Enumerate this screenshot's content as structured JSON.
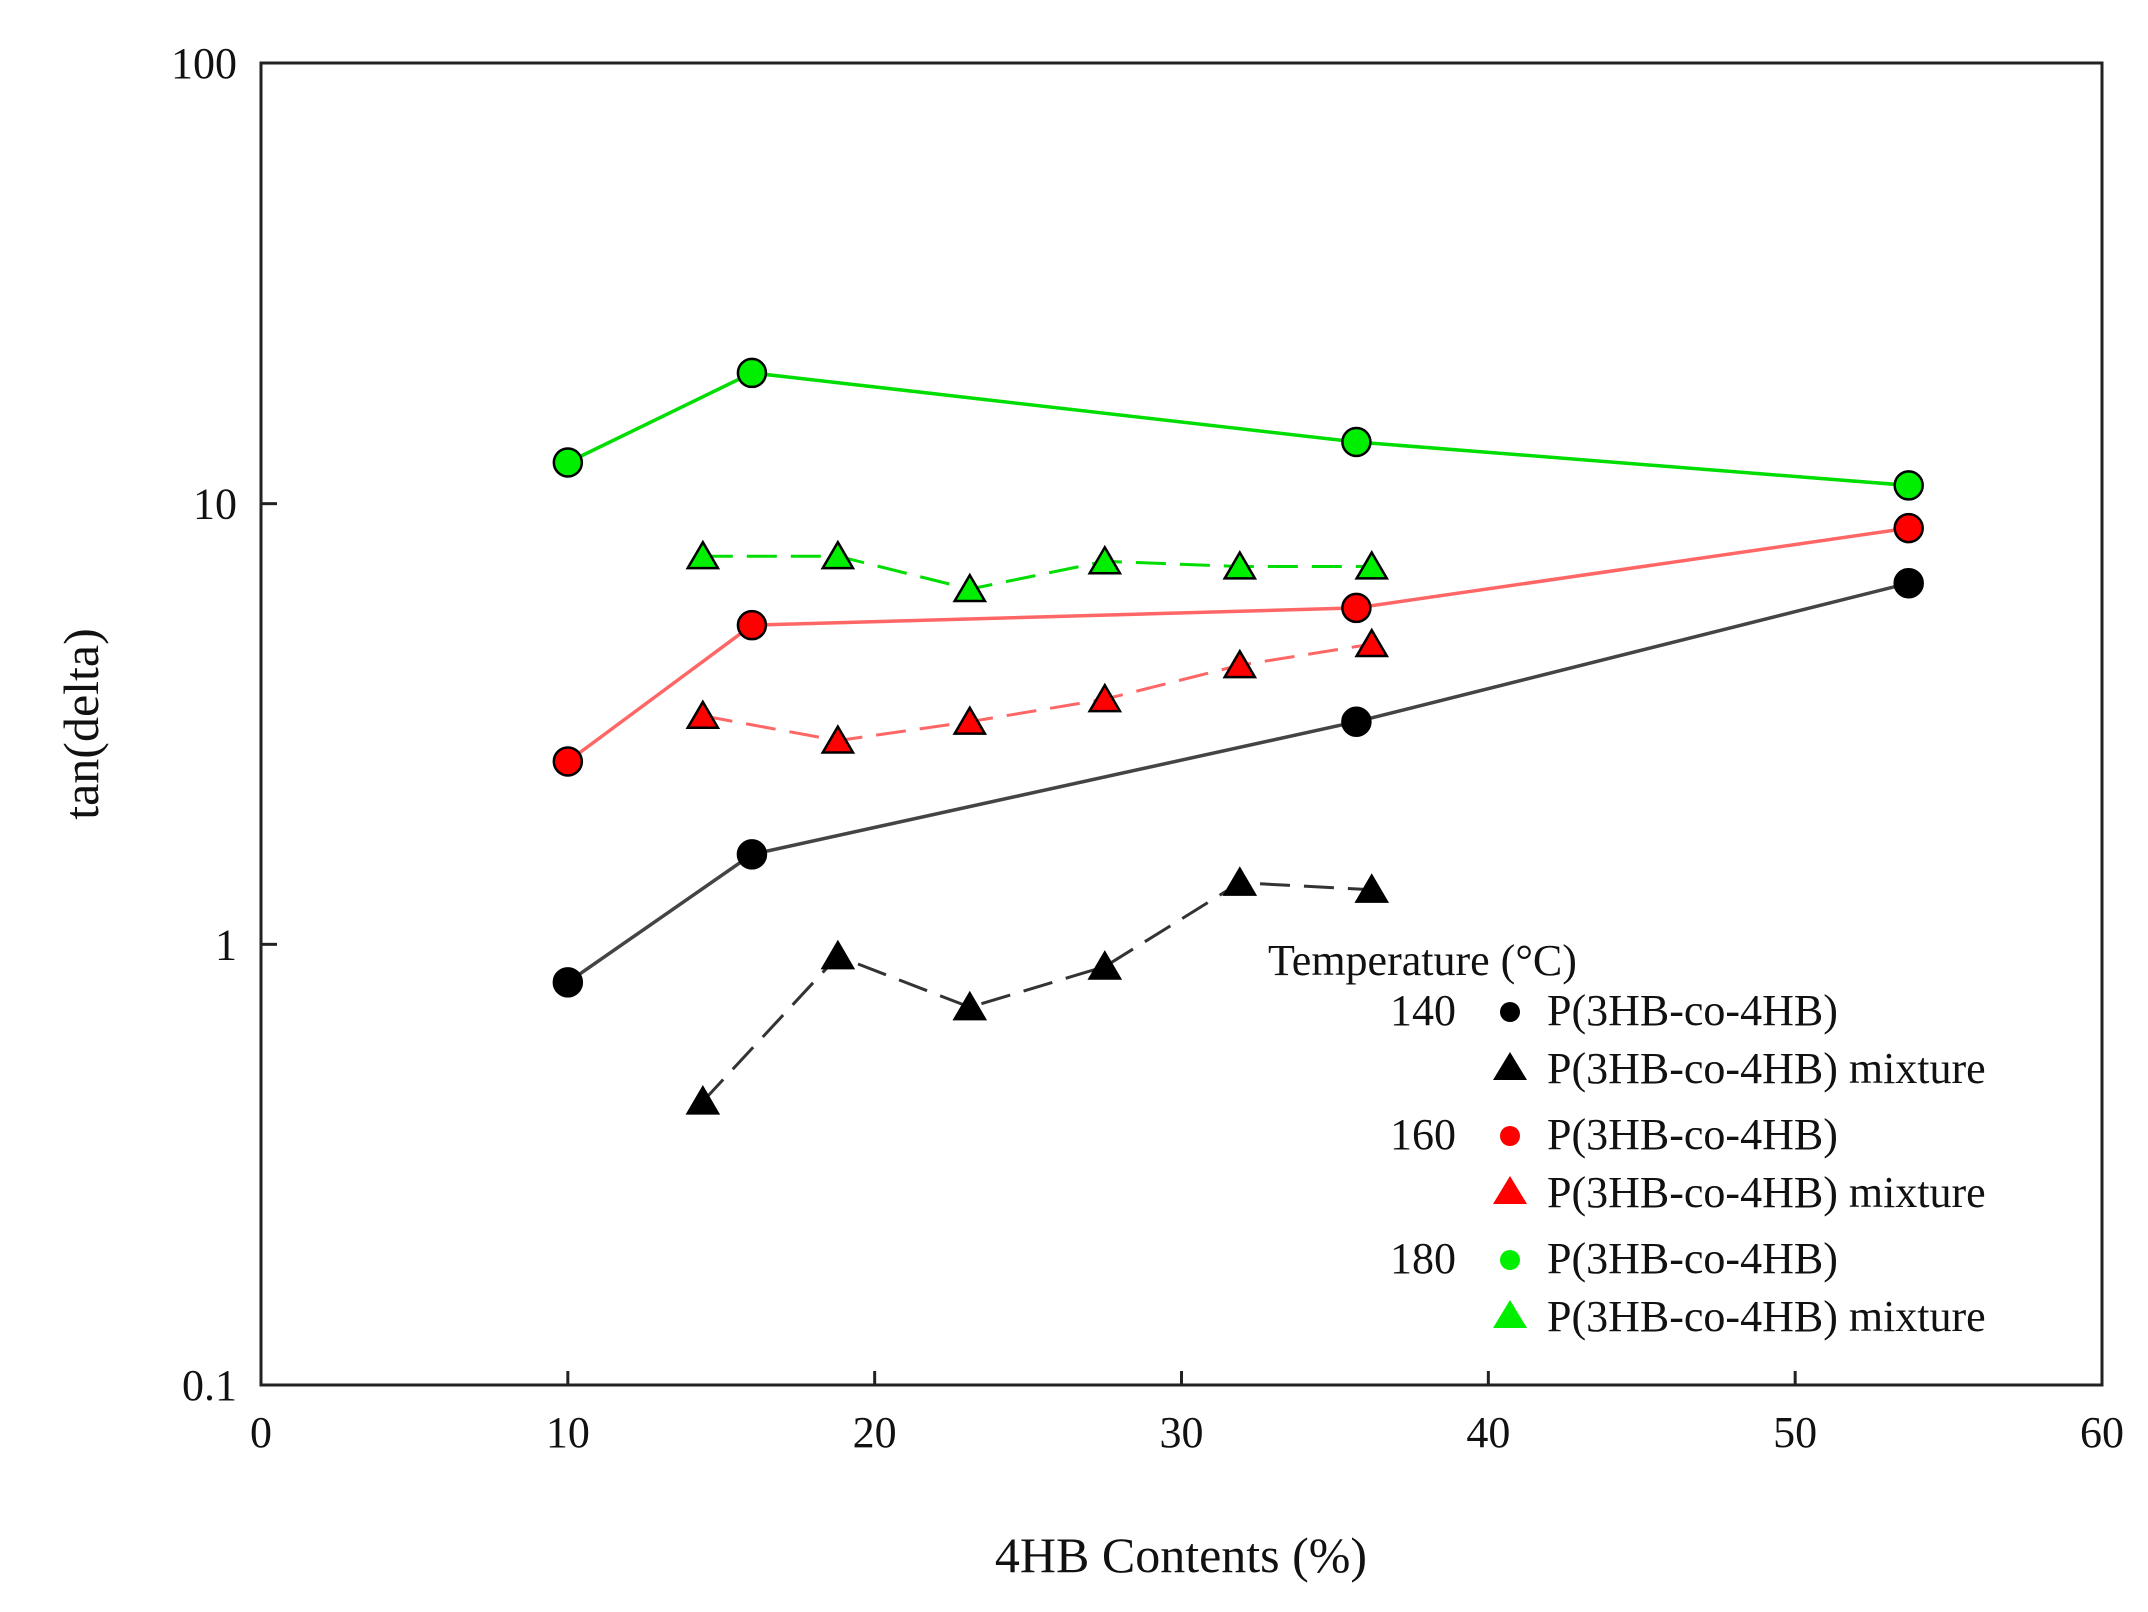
{
  "chart_data": {
    "type": "line",
    "title": "",
    "xlabel": "4HB Contents (%)",
    "ylabel": "tan(delta)",
    "xlim": [
      0,
      60
    ],
    "ylim": [
      0.1,
      100
    ],
    "yscale": "log",
    "grid": false,
    "x_ticks": [
      0,
      10,
      20,
      30,
      40,
      50,
      60
    ],
    "x_tick_labels": [
      "0",
      "10",
      "20",
      "30",
      "40",
      "50",
      "60"
    ],
    "y_ticks": [
      0.1,
      1,
      10,
      100
    ],
    "y_tick_labels": [
      "0.1",
      "1",
      "10",
      "100"
    ],
    "legend": {
      "position": "bottom-right",
      "title": "Temperature (°C)",
      "groups": [
        {
          "temperature": "140",
          "color": "#000000",
          "entries": [
            "P(3HB-co-4HB)",
            "P(3HB-co-4HB) mixture"
          ]
        },
        {
          "temperature": "160",
          "color": "#ff0000",
          "entries": [
            "P(3HB-co-4HB)",
            "P(3HB-co-4HB) mixture"
          ]
        },
        {
          "temperature": "180",
          "color": "#00ee00",
          "entries": [
            "P(3HB-co-4HB)",
            "P(3HB-co-4HB) mixture"
          ]
        }
      ]
    },
    "series": [
      {
        "name": "140 P(3HB-co-4HB)",
        "color": "#000000",
        "line_color": "#444444",
        "marker": "circle",
        "dash": false,
        "x": [
          10.0,
          16.0,
          35.7,
          53.7
        ],
        "y": [
          0.82,
          1.6,
          3.2,
          6.6
        ]
      },
      {
        "name": "140 P(3HB-co-4HB) mixture",
        "color": "#000000",
        "line_color": "#333333",
        "marker": "triangle",
        "dash": true,
        "x": [
          14.4,
          18.8,
          23.1,
          27.5,
          31.9,
          36.2
        ],
        "y": [
          0.44,
          0.94,
          0.72,
          0.89,
          1.38,
          1.33
        ]
      },
      {
        "name": "160 P(3HB-co-4HB)",
        "color": "#ff0000",
        "line_color": "#ff6666",
        "marker": "circle",
        "dash": false,
        "x": [
          10.0,
          16.0,
          35.7,
          53.7
        ],
        "y": [
          2.6,
          5.3,
          5.8,
          8.8
        ]
      },
      {
        "name": "160 P(3HB-co-4HB) mixture",
        "color": "#ff0000",
        "line_color": "#ff6666",
        "marker": "triangle",
        "dash": true,
        "x": [
          14.4,
          18.8,
          23.1,
          27.5,
          31.9,
          36.2
        ],
        "y": [
          3.3,
          2.9,
          3.2,
          3.6,
          4.3,
          4.8
        ]
      },
      {
        "name": "180 P(3HB-co-4HB)",
        "color": "#00ee00",
        "line_color": "#00dd00",
        "marker": "circle",
        "dash": false,
        "x": [
          10.0,
          16.0,
          35.7,
          53.7
        ],
        "y": [
          12.4,
          19.8,
          13.8,
          11.0
        ]
      },
      {
        "name": "180 P(3HB-co-4HB) mixture",
        "color": "#00ee00",
        "line_color": "#00dd00",
        "marker": "triangle",
        "dash": true,
        "x": [
          14.4,
          18.8,
          23.1,
          27.5,
          31.9,
          36.2
        ],
        "y": [
          7.6,
          7.6,
          6.4,
          7.4,
          7.2,
          7.2
        ]
      }
    ]
  }
}
